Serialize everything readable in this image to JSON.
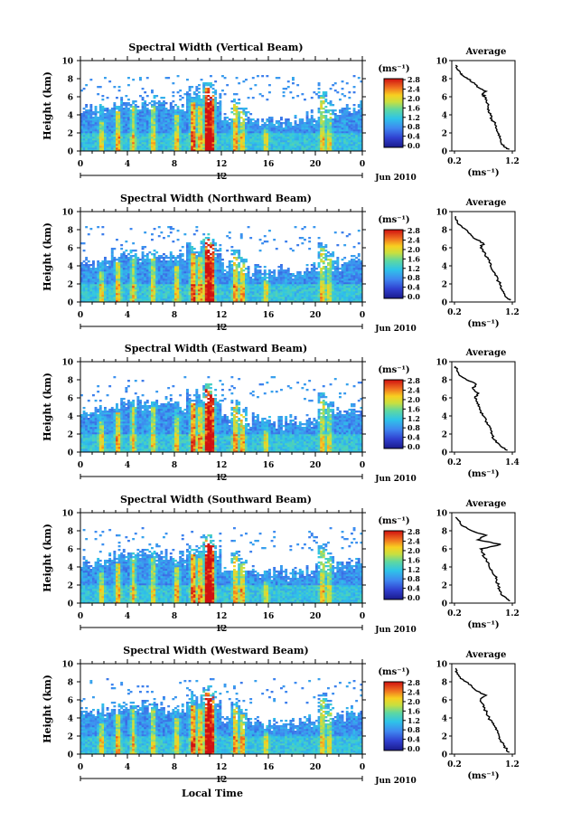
{
  "chart_data": [
    {
      "type": "heatmap",
      "title": "Spectral Width (Vertical Beam)",
      "ylabel": "Height (km)",
      "ylim": [
        0,
        10
      ],
      "yticks": [
        "0",
        "2",
        "4",
        "6",
        "8",
        "10"
      ],
      "xlim": [
        0,
        24
      ],
      "xticks": [
        "0",
        "4",
        "8",
        "12",
        "16",
        "20",
        "0"
      ],
      "date_tick": "12",
      "date_label": "Jun 2010",
      "colorbar": {
        "unit": "(ms⁻¹)",
        "ticks": [
          "0.0",
          "0.4",
          "0.8",
          "1.2",
          "1.6",
          "2.0",
          "2.4",
          "2.8"
        ],
        "range": [
          0,
          2.8
        ]
      },
      "profile": {
        "title": "Average",
        "xlabel": "(ms⁻¹)",
        "xticks": [
          "0.2",
          "1.2"
        ],
        "xlim": [
          0.2,
          1.2
        ],
        "y": [
          0.2,
          0.5,
          1,
          1.5,
          2,
          2.5,
          3,
          3.5,
          4,
          4.5,
          5,
          5.5,
          6,
          6.3,
          6.6,
          7,
          7.5,
          8,
          8.3,
          8.6,
          9,
          9.5
        ],
        "x": [
          1.15,
          1.05,
          1.0,
          0.98,
          0.95,
          0.92,
          0.9,
          0.85,
          0.82,
          0.8,
          0.78,
          0.75,
          0.72,
          0.68,
          0.75,
          0.62,
          0.55,
          0.42,
          0.35,
          0.3,
          0.25,
          0.22
        ]
      }
    },
    {
      "type": "heatmap",
      "title": "Spectral Width (Northward Beam)",
      "ylabel": "Height (km)",
      "ylim": [
        0,
        10
      ],
      "yticks": [
        "0",
        "2",
        "4",
        "6",
        "8",
        "10"
      ],
      "xlim": [
        0,
        24
      ],
      "xticks": [
        "0",
        "4",
        "8",
        "12",
        "16",
        "20",
        "0"
      ],
      "date_tick": "12",
      "date_label": "Jun 2010",
      "colorbar": {
        "unit": "(ms⁻¹)",
        "ticks": [
          "0.0",
          "0.4",
          "0.8",
          "1.2",
          "1.6",
          "2.0",
          "2.4",
          "2.8"
        ],
        "range": [
          0,
          2.8
        ]
      },
      "profile": {
        "title": "Average",
        "xlabel": "(ms⁻¹)",
        "xticks": [
          "0.2",
          "1.2"
        ],
        "xlim": [
          0.2,
          1.2
        ],
        "y": [
          0.2,
          0.5,
          1,
          1.5,
          2,
          2.5,
          3,
          3.5,
          4,
          4.5,
          5,
          5.5,
          6,
          6.5,
          7,
          7.5,
          8,
          8.5,
          9,
          9.5
        ],
        "x": [
          1.15,
          1.1,
          1.05,
          1.0,
          0.98,
          0.95,
          0.9,
          0.86,
          0.82,
          0.8,
          0.75,
          0.72,
          0.65,
          0.7,
          0.55,
          0.48,
          0.4,
          0.3,
          0.25,
          0.22
        ]
      }
    },
    {
      "type": "heatmap",
      "title": "Spectral Width (Eastward Beam)",
      "ylabel": "Height (km)",
      "ylim": [
        0,
        10
      ],
      "yticks": [
        "0",
        "2",
        "4",
        "6",
        "8",
        "10"
      ],
      "xlim": [
        0,
        24
      ],
      "xticks": [
        "0",
        "4",
        "8",
        "12",
        "16",
        "20",
        "0"
      ],
      "date_tick": "12",
      "date_label": "Jun 2010",
      "colorbar": {
        "unit": "(ms⁻¹)",
        "ticks": [
          "0.0",
          "0.4",
          "0.8",
          "1.2",
          "1.6",
          "2.0",
          "2.4",
          "2.8"
        ],
        "range": [
          0,
          2.8
        ]
      },
      "profile": {
        "title": "Average",
        "xlabel": "(ms⁻¹)",
        "xticks": [
          "0.2",
          "1.4"
        ],
        "xlim": [
          0.2,
          1.4
        ],
        "y": [
          0.2,
          0.5,
          1,
          1.5,
          2,
          2.5,
          3,
          3.5,
          4,
          4.5,
          5,
          5.5,
          6,
          6.5,
          7,
          7.5,
          8,
          8.5,
          9,
          9.5
        ],
        "x": [
          1.3,
          1.2,
          1.1,
          1.0,
          0.98,
          0.95,
          0.9,
          0.85,
          0.8,
          0.75,
          0.72,
          0.68,
          0.62,
          0.7,
          0.58,
          0.65,
          0.45,
          0.3,
          0.25,
          0.22
        ]
      }
    },
    {
      "type": "heatmap",
      "title": "Spectral Width (Southward Beam)",
      "ylabel": "Height (km)",
      "ylim": [
        0,
        10
      ],
      "yticks": [
        "0",
        "2",
        "4",
        "6",
        "8",
        "10"
      ],
      "xlim": [
        0,
        24
      ],
      "xticks": [
        "0",
        "4",
        "8",
        "12",
        "16",
        "20",
        "0"
      ],
      "date_tick": "12",
      "date_label": "Jun 2010",
      "colorbar": {
        "unit": "(ms⁻¹)",
        "ticks": [
          "0.0",
          "0.4",
          "0.8",
          "1.2",
          "1.6",
          "2.0",
          "2.4",
          "2.8"
        ],
        "range": [
          0,
          2.8
        ]
      },
      "profile": {
        "title": "Average",
        "xlabel": "(ms⁻¹)",
        "xticks": [
          "0.2",
          "1.2"
        ],
        "xlim": [
          0.2,
          1.2
        ],
        "y": [
          0.2,
          0.5,
          1,
          1.5,
          2,
          2.5,
          3,
          3.5,
          4,
          4.5,
          5,
          5.5,
          6,
          6.5,
          7,
          7.5,
          8,
          8.5,
          9,
          9.5
        ],
        "x": [
          1.15,
          1.1,
          1.0,
          0.98,
          0.95,
          0.93,
          0.9,
          0.85,
          0.8,
          0.78,
          0.72,
          0.7,
          0.65,
          1.0,
          0.6,
          0.75,
          0.5,
          0.35,
          0.3,
          0.22
        ]
      }
    },
    {
      "type": "heatmap",
      "title": "Spectral Width (Westward Beam)",
      "ylabel": "Height (km)",
      "ylim": [
        0,
        10
      ],
      "yticks": [
        "0",
        "2",
        "4",
        "6",
        "8",
        "10"
      ],
      "xlim": [
        0,
        24
      ],
      "xticks": [
        "0",
        "4",
        "8",
        "12",
        "16",
        "20",
        "0"
      ],
      "date_tick": "12",
      "date_label": "Jun 2010",
      "xlabel": "Local Time",
      "colorbar": {
        "unit": "(ms⁻¹)",
        "ticks": [
          "0.0",
          "0.4",
          "0.8",
          "1.2",
          "1.6",
          "2.0",
          "2.4",
          "2.8"
        ],
        "range": [
          0,
          2.8
        ]
      },
      "profile": {
        "title": "Average",
        "xlabel": "(ms⁻¹)",
        "xticks": [
          "0.2",
          "1.2"
        ],
        "xlim": [
          0.2,
          1.2
        ],
        "y": [
          0.2,
          0.5,
          1,
          1.5,
          2,
          2.5,
          3,
          3.5,
          4,
          4.5,
          5,
          5.5,
          6,
          6.5,
          7,
          7.5,
          8,
          8.5,
          9,
          9.5
        ],
        "x": [
          1.15,
          1.1,
          1.05,
          1.0,
          0.97,
          0.95,
          0.9,
          0.85,
          0.8,
          0.76,
          0.72,
          0.7,
          0.65,
          0.75,
          0.58,
          0.5,
          0.4,
          0.3,
          0.25,
          0.22
        ]
      }
    }
  ]
}
